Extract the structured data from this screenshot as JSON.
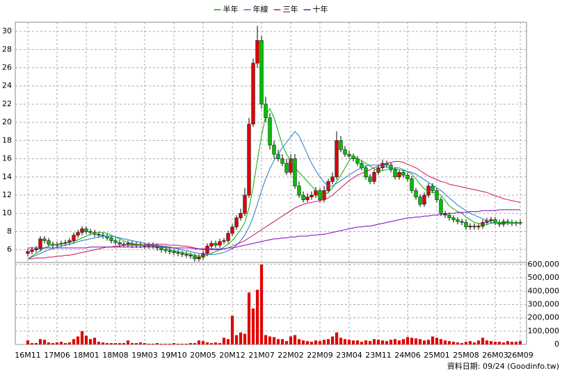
{
  "chart_data": {
    "type": "candlestick",
    "categories": [
      "16M11",
      null,
      null,
      null,
      null,
      null,
      null,
      "17M06",
      null,
      null,
      null,
      null,
      null,
      null,
      "18M01",
      null,
      null,
      null,
      null,
      null,
      null,
      "18M08",
      null,
      null,
      null,
      null,
      null,
      null,
      "19M03",
      null,
      null,
      null,
      null,
      null,
      null,
      "19M10",
      null,
      null,
      null,
      null,
      null,
      null,
      "20M05",
      null,
      null,
      null,
      null,
      null,
      null,
      "20M12",
      null,
      null,
      null,
      null,
      null,
      null,
      "21M07",
      null,
      null,
      null,
      null,
      null,
      null,
      "22M02",
      null,
      null,
      null,
      null,
      null,
      null,
      "22M09",
      null,
      null,
      null,
      null,
      null,
      null,
      "23M04",
      null,
      null,
      null,
      null,
      null,
      null,
      "23M11",
      null,
      null,
      null,
      null,
      null,
      null,
      "24M06",
      null,
      null,
      null,
      null,
      null,
      null,
      "25M01",
      null,
      null,
      null,
      null,
      null,
      null,
      "25M08",
      null,
      null,
      null,
      null,
      null,
      null,
      "26M03",
      null,
      null,
      null,
      null,
      null,
      "26M09"
    ],
    "open": [
      5.6,
      5.8,
      6.0,
      6.1,
      7.2,
      7.0,
      6.6,
      6.5,
      6.6,
      6.7,
      6.8,
      7.0,
      7.6,
      7.9,
      8.3,
      8.0,
      7.9,
      7.7,
      7.6,
      7.5,
      7.3,
      7.0,
      6.8,
      6.6,
      6.6,
      6.7,
      6.5,
      6.6,
      6.5,
      6.4,
      6.5,
      6.4,
      6.2,
      6.0,
      5.9,
      5.8,
      5.7,
      5.6,
      5.5,
      5.4,
      5.3,
      5.0,
      5.2,
      5.6,
      6.4,
      6.7,
      6.5,
      6.9,
      7.0,
      7.8,
      8.5,
      9.5,
      10.0,
      12.0,
      19.8,
      26.5,
      29.0,
      22.0,
      20.5,
      17.5,
      16.5,
      16.0,
      15.5,
      14.5,
      16.0,
      13.0,
      12.0,
      11.5,
      11.8,
      12.0,
      12.5,
      11.5,
      12.5,
      13.5,
      14.0,
      18.0,
      17.0,
      16.5,
      16.3,
      16.0,
      15.5,
      15.0,
      14.0,
      13.5,
      14.5,
      15.0,
      15.5,
      15.3,
      14.8,
      14.0,
      14.5,
      14.2,
      13.8,
      12.5,
      11.8,
      11.0,
      12.0,
      13.0,
      12.5,
      11.5,
      10.0,
      9.8,
      9.5,
      9.3,
      9.1,
      9.0,
      8.5,
      8.6,
      8.5,
      8.6,
      9.0,
      9.2,
      9.3,
      9.0,
      8.8,
      9.1,
      9.0,
      8.9,
      9.0
    ],
    "high": [
      6.1,
      6.3,
      6.4,
      7.5,
      7.5,
      7.3,
      6.9,
      6.9,
      7.0,
      7.1,
      7.3,
      7.9,
      8.2,
      8.6,
      8.6,
      8.3,
      8.2,
      8.0,
      7.9,
      7.8,
      7.6,
      7.3,
      7.1,
      6.9,
      7.0,
      7.0,
      6.9,
      6.9,
      6.8,
      6.8,
      6.8,
      6.7,
      6.5,
      6.3,
      6.2,
      6.1,
      6.0,
      5.9,
      5.8,
      5.7,
      5.6,
      5.5,
      5.9,
      6.7,
      7.0,
      7.0,
      7.2,
      7.3,
      8.1,
      8.8,
      9.8,
      10.5,
      12.8,
      20.5,
      27.0,
      30.6,
      29.5,
      22.8,
      21.0,
      18.0,
      17.0,
      16.5,
      16.0,
      16.5,
      16.5,
      13.5,
      12.4,
      12.2,
      12.4,
      12.9,
      12.8,
      13.0,
      13.8,
      14.5,
      19.0,
      18.5,
      17.4,
      16.9,
      16.6,
      16.3,
      15.8,
      15.3,
      14.3,
      14.8,
      15.4,
      15.9,
      15.8,
      15.6,
      15.1,
      14.8,
      14.8,
      14.5,
      14.1,
      12.8,
      12.1,
      12.3,
      13.3,
      13.3,
      12.8,
      11.8,
      10.3,
      10.1,
      9.8,
      9.6,
      9.4,
      9.3,
      8.9,
      8.9,
      8.9,
      9.3,
      9.5,
      9.6,
      9.6,
      9.3,
      9.4,
      9.4,
      9.3,
      9.2,
      9.3
    ],
    "low": [
      5.3,
      5.5,
      5.7,
      5.8,
      6.7,
      6.3,
      6.2,
      6.2,
      6.3,
      6.4,
      6.5,
      6.7,
      7.3,
      7.6,
      7.7,
      7.6,
      7.4,
      7.3,
      7.2,
      7.0,
      6.7,
      6.5,
      6.3,
      6.3,
      6.3,
      6.2,
      6.2,
      6.2,
      6.1,
      6.1,
      6.1,
      5.9,
      5.7,
      5.6,
      5.5,
      5.4,
      5.3,
      5.2,
      5.1,
      5.0,
      4.7,
      4.7,
      4.9,
      5.3,
      6.1,
      6.2,
      6.2,
      6.6,
      6.7,
      7.5,
      8.2,
      9.2,
      9.7,
      11.7,
      19.5,
      26.0,
      21.5,
      20.0,
      17.0,
      16.0,
      15.7,
      15.2,
      14.2,
      14.2,
      12.7,
      11.7,
      11.2,
      11.2,
      11.5,
      11.7,
      11.2,
      11.2,
      12.2,
      13.2,
      13.7,
      16.7,
      16.2,
      16.0,
      15.7,
      15.2,
      14.7,
      13.7,
      13.2,
      13.2,
      14.2,
      14.7,
      15.0,
      14.5,
      13.7,
      13.7,
      13.9,
      13.5,
      12.2,
      11.5,
      10.7,
      10.7,
      11.7,
      12.2,
      11.2,
      9.7,
      9.5,
      9.2,
      9.0,
      8.8,
      8.7,
      8.2,
      8.2,
      8.2,
      8.2,
      8.3,
      8.7,
      8.9,
      8.7,
      8.5,
      8.5,
      8.7,
      8.6,
      8.6,
      8.7
    ],
    "close": [
      5.8,
      6.0,
      6.1,
      7.2,
      7.0,
      6.6,
      6.5,
      6.6,
      6.7,
      6.8,
      7.0,
      7.6,
      7.9,
      8.3,
      8.0,
      7.9,
      7.7,
      7.6,
      7.5,
      7.3,
      7.0,
      6.8,
      6.6,
      6.6,
      6.7,
      6.5,
      6.6,
      6.5,
      6.4,
      6.5,
      6.4,
      6.2,
      6.0,
      5.9,
      5.8,
      5.7,
      5.6,
      5.5,
      5.4,
      5.3,
      5.0,
      5.2,
      5.6,
      6.4,
      6.7,
      6.5,
      6.9,
      7.0,
      7.8,
      8.5,
      9.5,
      10.0,
      12.0,
      19.8,
      26.5,
      29.0,
      22.0,
      20.5,
      17.5,
      16.5,
      16.0,
      15.5,
      14.5,
      16.0,
      13.0,
      12.0,
      11.5,
      11.8,
      12.0,
      12.5,
      11.5,
      12.5,
      13.5,
      14.0,
      18.0,
      17.0,
      16.5,
      16.3,
      16.0,
      15.5,
      15.0,
      14.0,
      13.5,
      14.5,
      15.0,
      15.5,
      15.3,
      14.8,
      14.0,
      14.5,
      14.2,
      13.8,
      12.5,
      11.8,
      11.0,
      12.0,
      13.0,
      12.5,
      11.5,
      10.0,
      9.8,
      9.5,
      9.3,
      9.1,
      9.0,
      8.5,
      8.6,
      8.5,
      8.6,
      9.0,
      9.2,
      9.3,
      9.0,
      8.8,
      9.1,
      9.0,
      8.9,
      9.0,
      9.0
    ],
    "up_color": "#e00000",
    "down_color": "#00c000",
    "ylim": [
      4.6,
      31
    ],
    "yticks": [
      6,
      8,
      10,
      12,
      14,
      16,
      18,
      20,
      22,
      24,
      26,
      28,
      30
    ],
    "grid": true,
    "legend": "top",
    "series": [
      {
        "name": "半年",
        "color": "#00b000",
        "values": [
          5.0,
          5.3,
          5.6,
          5.9,
          6.2,
          6.4,
          6.5,
          6.6,
          6.6,
          6.7,
          6.8,
          6.9,
          7.1,
          7.3,
          7.5,
          7.7,
          7.8,
          7.9,
          7.9,
          7.8,
          7.6,
          7.4,
          7.2,
          7.0,
          6.8,
          6.7,
          6.6,
          6.6,
          6.5,
          6.5,
          6.5,
          6.4,
          6.3,
          6.2,
          6.0,
          5.9,
          5.8,
          5.7,
          5.6,
          5.5,
          5.4,
          5.3,
          5.3,
          5.4,
          5.6,
          5.8,
          6.0,
          6.3,
          6.6,
          7.0,
          7.6,
          8.2,
          9.0,
          10.6,
          12.9,
          15.8,
          18.5,
          20.7,
          21.5,
          20.5,
          19.0,
          17.5,
          16.5,
          15.8,
          15.0,
          14.5,
          14.0,
          13.5,
          13.0,
          12.5,
          12.0,
          12.0,
          12.3,
          12.8,
          13.5,
          14.2,
          15.0,
          15.8,
          16.3,
          16.0,
          15.8,
          15.5,
          15.2,
          14.9,
          14.7,
          14.7,
          14.8,
          14.9,
          15.0,
          15.0,
          14.8,
          14.6,
          14.3,
          13.8,
          13.2,
          12.7,
          12.4,
          12.3,
          12.2,
          12.0,
          11.4,
          10.8,
          10.5,
          10.2,
          10.0,
          9.6,
          9.3,
          9.0,
          8.9,
          8.8,
          8.8,
          8.9,
          9.0,
          9.0,
          9.0,
          9.0,
          9.0,
          9.0,
          9.0
        ]
      },
      {
        "name": "年線",
        "color": "#1f77d0",
        "values": [
          5.0,
          5.2,
          5.4,
          5.6,
          5.8,
          6.0,
          6.1,
          6.3,
          6.4,
          6.5,
          6.6,
          6.7,
          6.9,
          7.0,
          7.1,
          7.2,
          7.3,
          7.4,
          7.5,
          7.5,
          7.5,
          7.4,
          7.3,
          7.2,
          7.1,
          7.0,
          6.9,
          6.8,
          6.7,
          6.6,
          6.5,
          6.5,
          6.4,
          6.4,
          6.3,
          6.2,
          6.1,
          6.0,
          5.9,
          5.8,
          5.7,
          5.6,
          5.5,
          5.5,
          5.5,
          5.5,
          5.6,
          5.7,
          5.9,
          6.1,
          6.5,
          7.0,
          7.6,
          8.5,
          9.6,
          11.0,
          12.5,
          13.8,
          14.9,
          15.8,
          16.5,
          17.2,
          17.8,
          18.4,
          19.0,
          18.5,
          17.5,
          16.5,
          15.5,
          14.7,
          14.0,
          13.4,
          13.0,
          13.0,
          13.3,
          13.6,
          13.9,
          14.2,
          14.5,
          14.8,
          15.0,
          15.2,
          15.3,
          15.3,
          15.3,
          15.2,
          15.1,
          15.0,
          14.9,
          14.8,
          14.7,
          14.6,
          14.5,
          14.3,
          14.0,
          13.7,
          13.4,
          13.1,
          12.8,
          12.5,
          12.1,
          11.7,
          11.3,
          10.9,
          10.6,
          10.3,
          10.0,
          9.8,
          9.6,
          9.4,
          9.2,
          9.0,
          8.9,
          8.9,
          8.9,
          8.9,
          8.9,
          8.9,
          8.9
        ]
      },
      {
        "name": "三年",
        "color": "#d0105a",
        "values": [
          5.0,
          5.0,
          5.1,
          5.1,
          5.1,
          5.2,
          5.2,
          5.3,
          5.3,
          5.4,
          5.4,
          5.5,
          5.6,
          5.7,
          5.8,
          5.9,
          6.0,
          6.1,
          6.2,
          6.3,
          6.3,
          6.4,
          6.4,
          6.5,
          6.5,
          6.5,
          6.5,
          6.5,
          6.5,
          6.6,
          6.6,
          6.6,
          6.6,
          6.6,
          6.5,
          6.5,
          6.5,
          6.4,
          6.4,
          6.3,
          6.2,
          6.1,
          6.0,
          6.0,
          6.0,
          6.0,
          6.0,
          6.1,
          6.2,
          6.4,
          6.6,
          6.8,
          7.0,
          7.3,
          7.6,
          7.9,
          8.2,
          8.5,
          8.8,
          9.1,
          9.4,
          9.7,
          10.0,
          10.3,
          10.6,
          10.8,
          11.0,
          11.1,
          11.2,
          11.3,
          11.4,
          11.5,
          11.7,
          12.0,
          12.4,
          12.8,
          13.2,
          13.6,
          13.9,
          14.2,
          14.4,
          14.6,
          14.8,
          15.0,
          15.2,
          15.4,
          15.5,
          15.6,
          15.7,
          15.7,
          15.6,
          15.4,
          15.2,
          15.0,
          14.7,
          14.4,
          14.1,
          13.9,
          13.7,
          13.5,
          13.4,
          13.2,
          13.1,
          13.0,
          12.9,
          12.8,
          12.7,
          12.6,
          12.5,
          12.4,
          12.3,
          12.1,
          11.9,
          11.8,
          11.6,
          11.5,
          11.4,
          11.3,
          11.2
        ]
      },
      {
        "name": "十年",
        "color": "#8000c0",
        "values": [
          6.2,
          6.2,
          6.2,
          6.2,
          6.2,
          6.2,
          6.2,
          6.2,
          6.2,
          6.2,
          6.2,
          6.2,
          6.2,
          6.2,
          6.2,
          6.3,
          6.3,
          6.3,
          6.3,
          6.3,
          6.3,
          6.3,
          6.3,
          6.3,
          6.3,
          6.3,
          6.3,
          6.3,
          6.3,
          6.3,
          6.3,
          6.3,
          6.3,
          6.3,
          6.2,
          6.2,
          6.2,
          6.2,
          6.2,
          6.2,
          6.1,
          6.1,
          6.1,
          6.1,
          6.1,
          6.1,
          6.1,
          6.1,
          6.2,
          6.2,
          6.3,
          6.4,
          6.5,
          6.6,
          6.7,
          6.8,
          6.9,
          7.0,
          7.1,
          7.2,
          7.2,
          7.3,
          7.3,
          7.4,
          7.4,
          7.5,
          7.5,
          7.5,
          7.6,
          7.6,
          7.7,
          7.7,
          7.8,
          7.9,
          8.0,
          8.1,
          8.2,
          8.3,
          8.4,
          8.5,
          8.5,
          8.6,
          8.6,
          8.7,
          8.8,
          8.9,
          9.0,
          9.1,
          9.2,
          9.3,
          9.4,
          9.5,
          9.5,
          9.6,
          9.6,
          9.7,
          9.7,
          9.8,
          9.8,
          9.9,
          9.9,
          10.0,
          10.0,
          10.1,
          10.1,
          10.1,
          10.2,
          10.2,
          10.2,
          10.3,
          10.3,
          10.3,
          10.3,
          10.4,
          10.4,
          10.4,
          10.4,
          10.4,
          10.4
        ]
      }
    ],
    "volume": {
      "color": "#e00000",
      "values": [
        30000,
        10000,
        10000,
        40000,
        35000,
        15000,
        10000,
        15000,
        20000,
        10000,
        15000,
        40000,
        60000,
        100000,
        65000,
        40000,
        50000,
        20000,
        15000,
        10000,
        10000,
        10000,
        10000,
        10000,
        30000,
        10000,
        10000,
        15000,
        10000,
        5000,
        5000,
        10000,
        5000,
        5000,
        5000,
        10000,
        5000,
        5000,
        5000,
        10000,
        10000,
        30000,
        25000,
        15000,
        10000,
        15000,
        10000,
        50000,
        40000,
        215000,
        70000,
        90000,
        80000,
        390000,
        270000,
        410000,
        600000,
        70000,
        60000,
        55000,
        40000,
        40000,
        25000,
        60000,
        70000,
        40000,
        30000,
        25000,
        20000,
        30000,
        25000,
        35000,
        40000,
        60000,
        90000,
        50000,
        40000,
        35000,
        30000,
        30000,
        20000,
        30000,
        25000,
        40000,
        35000,
        30000,
        25000,
        35000,
        40000,
        30000,
        40000,
        55000,
        50000,
        45000,
        40000,
        30000,
        35000,
        60000,
        50000,
        40000,
        30000,
        25000,
        20000,
        15000,
        10000,
        20000,
        25000,
        15000,
        30000,
        50000,
        30000,
        25000,
        20000,
        20000,
        15000,
        25000,
        20000,
        20000,
        25000
      ],
      "ylim": [
        0,
        615000
      ],
      "yticks": [
        0,
        {
          "value": 100000,
          "label": "100,000"
        },
        {
          "value": 200000,
          "label": "200,000"
        },
        {
          "value": 300000,
          "label": "300,000"
        },
        {
          "value": 400000,
          "label": "400,000"
        },
        {
          "value": 500000,
          "label": "500,000"
        },
        {
          "value": 600000,
          "label": "600,000"
        }
      ]
    },
    "source": "資料日期: 09/24 (Goodinfo.tw)"
  }
}
